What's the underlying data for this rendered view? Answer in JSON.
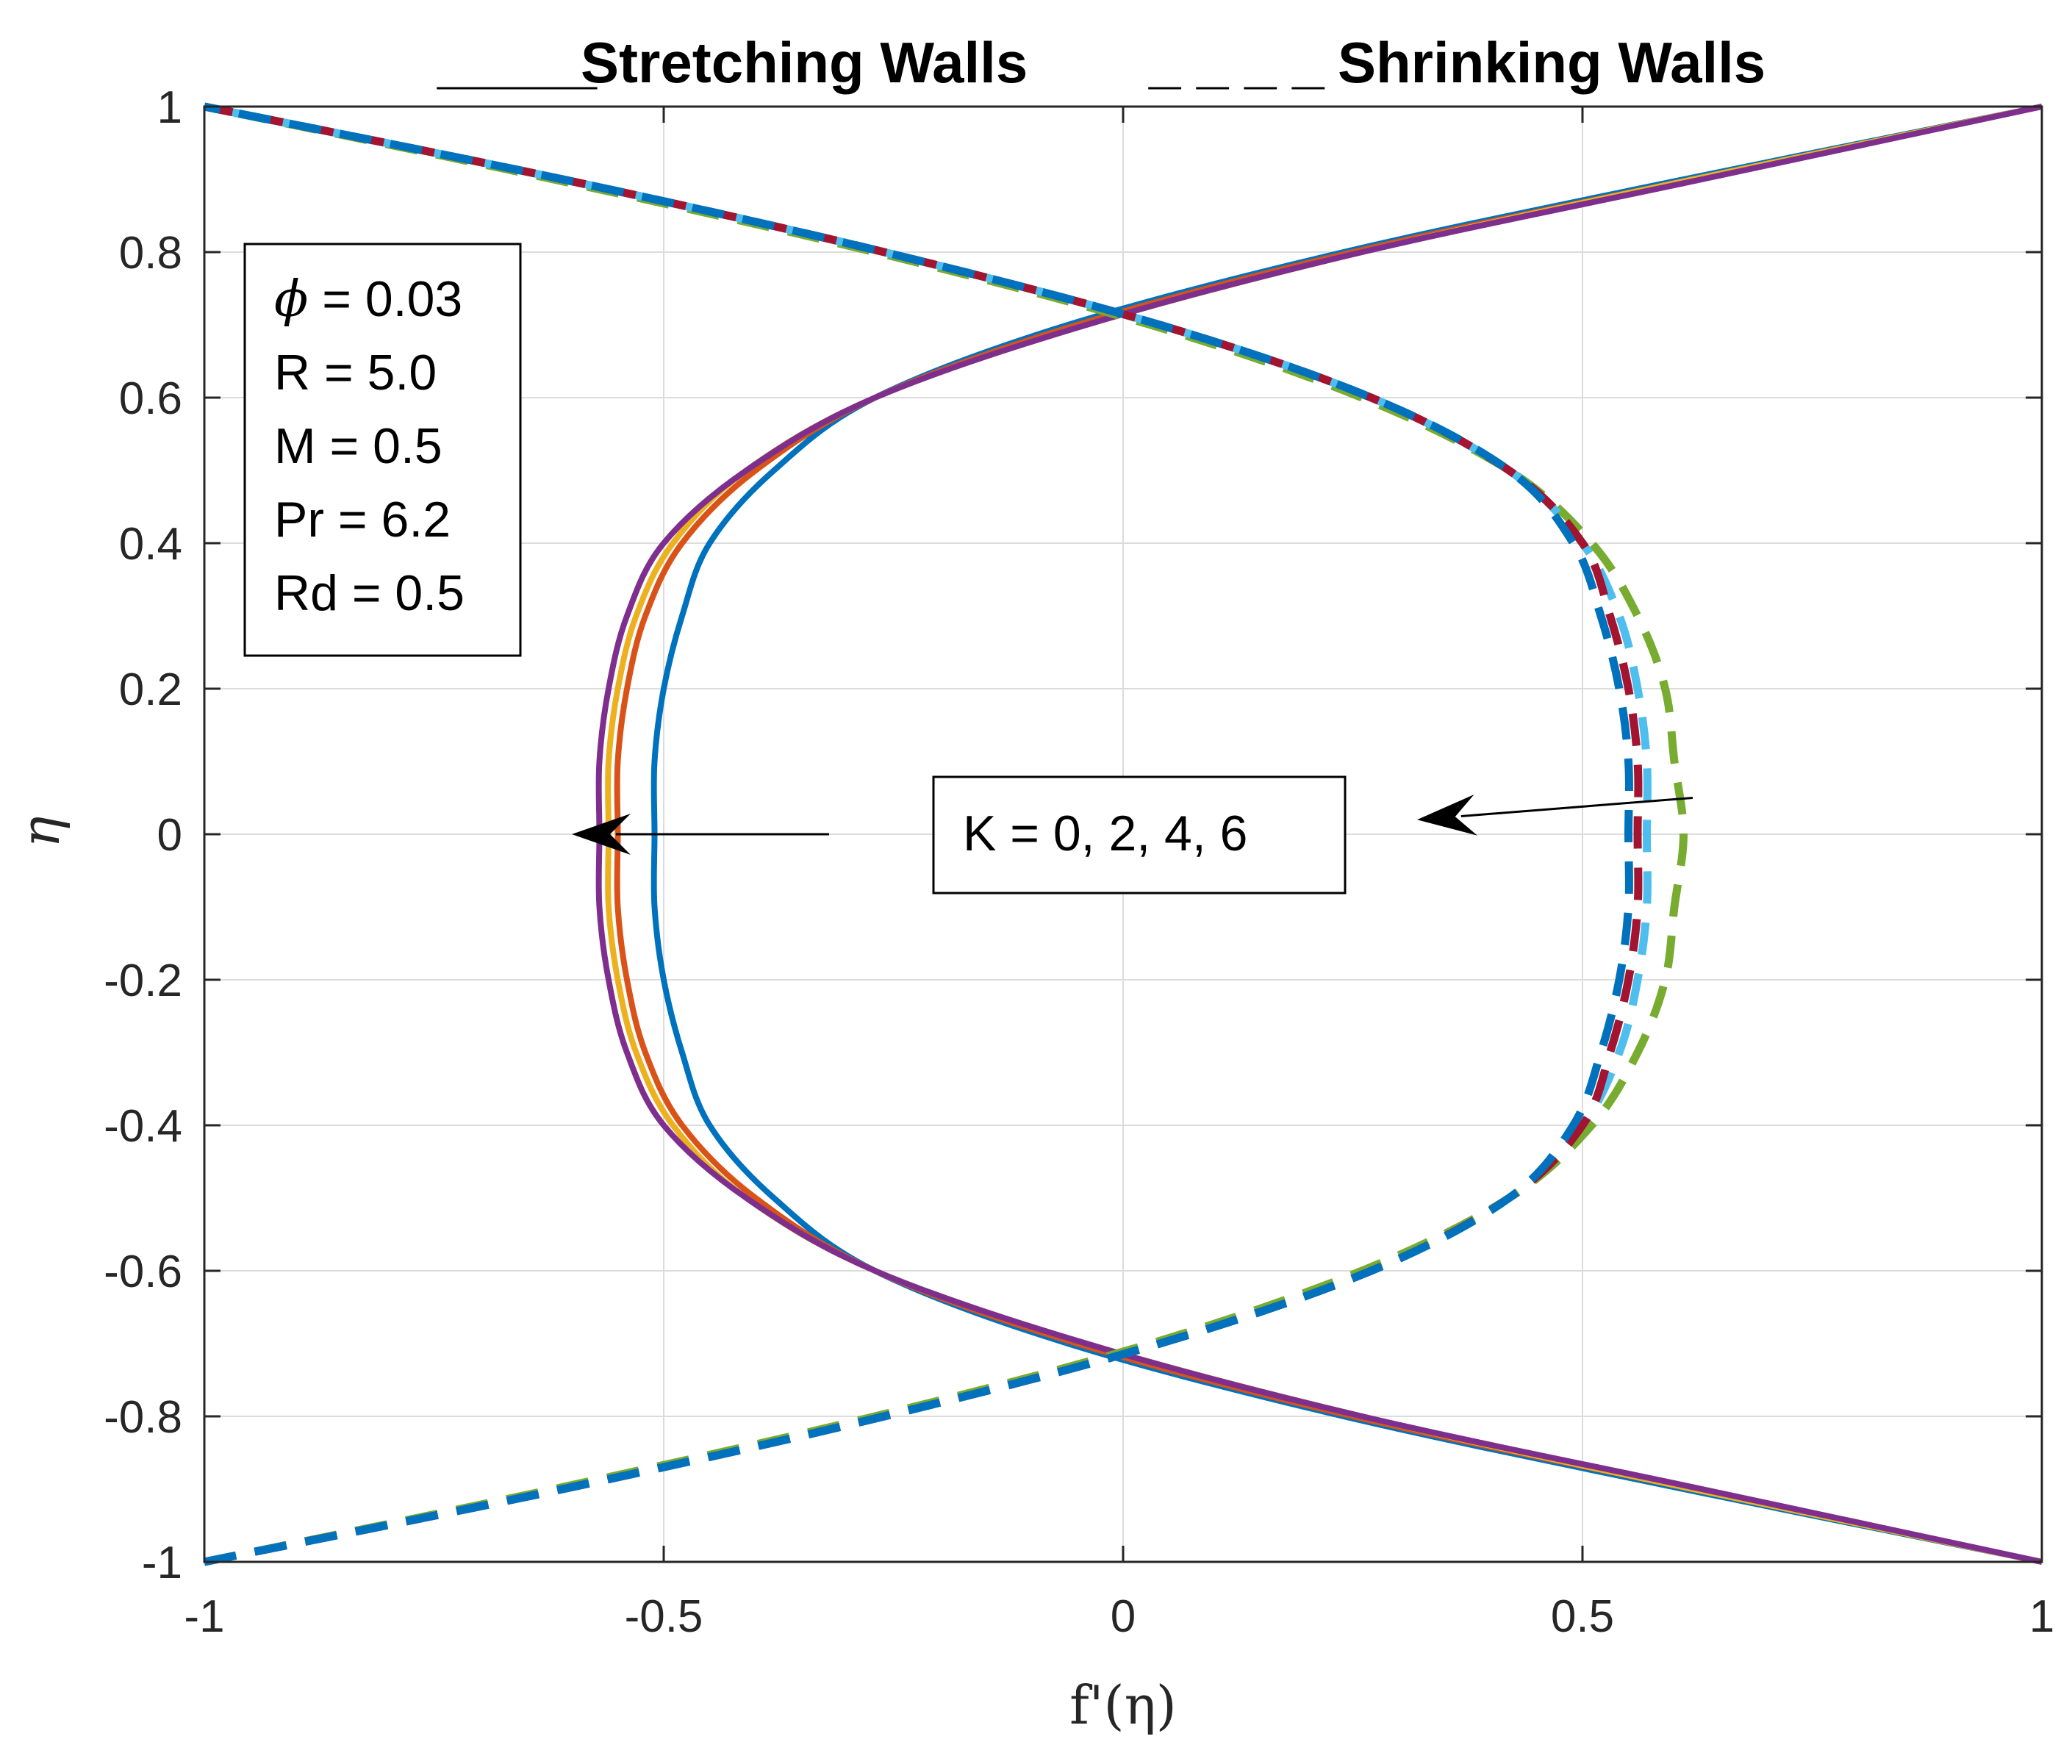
{
  "chart_data": {
    "type": "line",
    "title": "",
    "xlabel": "f'(η)",
    "ylabel": "η",
    "xlim": [
      -1,
      1
    ],
    "ylim": [
      -1,
      1
    ],
    "grid": true,
    "x_ticks": [
      -1,
      -0.5,
      0,
      0.5,
      1
    ],
    "x_tick_labels": [
      "-1",
      "-0.5",
      "0",
      "0.5",
      "1"
    ],
    "y_ticks": [
      -1,
      -0.8,
      -0.6,
      -0.4,
      -0.2,
      0,
      0.2,
      0.4,
      0.6,
      0.8,
      1
    ],
    "y_tick_labels": [
      "-1",
      "-0.8",
      "-0.6",
      "-0.4",
      "-0.2",
      "0",
      "0.2",
      "0.4",
      "0.6",
      "0.8",
      "1"
    ],
    "legend": {
      "stretching_label": "Stretching Walls",
      "shrinking_label": "Shrinking Walls",
      "stretching_marker": "_____",
      "shrinking_marker": "_ _ _ _"
    },
    "parameter_box": {
      "lines": [
        {
          "symbol": "ϕ",
          "text": " = 0.03"
        },
        {
          "symbol": "",
          "text": "R = 5.0"
        },
        {
          "symbol": "",
          "text": "M = 0.5"
        },
        {
          "symbol": "",
          "text": "Pr = 6.2"
        },
        {
          "symbol": "",
          "text": "Rd = 0.5"
        }
      ]
    },
    "annotation": {
      "text": "K = 0, 2, 4, 6",
      "arrows": [
        {
          "name": "stretching-arrow",
          "from": [
            -0.32,
            0.0
          ],
          "to": [
            -0.6,
            0.0
          ]
        },
        {
          "name": "shrinking-arrow",
          "from": [
            0.62,
            0.05
          ],
          "to": [
            0.32,
            0.02
          ]
        }
      ]
    },
    "eta_samples": [
      -1,
      -0.9,
      -0.8,
      -0.7,
      -0.6,
      -0.5,
      -0.4,
      -0.3,
      -0.2,
      -0.1,
      0,
      0.1,
      0.2,
      0.3,
      0.4,
      0.5,
      0.6,
      0.7,
      0.8,
      0.9,
      1
    ],
    "series": [
      {
        "name": "Stretching K = 0",
        "wall": "stretching",
        "K": 0,
        "color": "#0072BD",
        "dash": "solid",
        "f_prime": [
          1,
          0.61,
          0.24,
          -0.06,
          -0.27,
          -0.38,
          -0.45,
          -0.48,
          -0.5,
          -0.51,
          -0.51,
          -0.51,
          -0.5,
          -0.48,
          -0.45,
          -0.38,
          -0.27,
          -0.06,
          0.24,
          0.61,
          1
        ]
      },
      {
        "name": "Stretching K = 2",
        "wall": "stretching",
        "K": 2,
        "color": "#D95319",
        "dash": "solid",
        "f_prime": [
          1,
          0.62,
          0.25,
          -0.05,
          -0.27,
          -0.4,
          -0.48,
          -0.52,
          -0.54,
          -0.55,
          -0.55,
          -0.55,
          -0.54,
          -0.52,
          -0.48,
          -0.4,
          -0.27,
          -0.05,
          0.25,
          0.62,
          1
        ]
      },
      {
        "name": "Stretching K = 4",
        "wall": "stretching",
        "K": 4,
        "color": "#EDB120",
        "dash": "solid",
        "f_prime": [
          1,
          0.62,
          0.26,
          -0.04,
          -0.27,
          -0.41,
          -0.49,
          -0.53,
          -0.55,
          -0.56,
          -0.56,
          -0.56,
          -0.55,
          -0.53,
          -0.49,
          -0.41,
          -0.27,
          -0.04,
          0.26,
          0.62,
          1
        ]
      },
      {
        "name": "Stretching K = 6",
        "wall": "stretching",
        "K": 6,
        "color": "#7E2F8E",
        "dash": "solid",
        "f_prime": [
          1,
          0.63,
          0.26,
          -0.04,
          -0.27,
          -0.41,
          -0.5,
          -0.54,
          -0.56,
          -0.57,
          -0.57,
          -0.57,
          -0.56,
          -0.54,
          -0.5,
          -0.41,
          -0.27,
          -0.04,
          0.26,
          0.63,
          1
        ]
      },
      {
        "name": "Shrinking K = 0",
        "wall": "shrinking",
        "K": 0,
        "color": "#77AC30",
        "dash": "dashed",
        "f_prime": [
          -1,
          -0.62,
          -0.27,
          0.03,
          0.26,
          0.42,
          0.51,
          0.56,
          0.59,
          0.6,
          0.61,
          0.6,
          0.59,
          0.56,
          0.51,
          0.42,
          0.26,
          0.03,
          -0.27,
          -0.62,
          -1
        ]
      },
      {
        "name": "Shrinking K = 2",
        "wall": "shrinking",
        "K": 2,
        "color": "#4DBEEE",
        "dash": "dashed",
        "f_prime": [
          -1,
          -0.61,
          -0.26,
          0.04,
          0.27,
          0.42,
          0.5,
          0.54,
          0.56,
          0.57,
          0.57,
          0.57,
          0.56,
          0.54,
          0.5,
          0.42,
          0.27,
          0.04,
          -0.26,
          -0.61,
          -1
        ]
      },
      {
        "name": "Shrinking K = 4",
        "wall": "shrinking",
        "K": 4,
        "color": "#A2142F",
        "dash": "dashed",
        "f_prime": [
          -1,
          -0.61,
          -0.26,
          0.04,
          0.27,
          0.42,
          0.5,
          0.53,
          0.55,
          0.56,
          0.56,
          0.56,
          0.55,
          0.53,
          0.5,
          0.42,
          0.27,
          0.04,
          -0.26,
          -0.61,
          -1
        ]
      },
      {
        "name": "Shrinking K = 6",
        "wall": "shrinking",
        "K": 6,
        "color": "#0072BD",
        "dash": "dashed",
        "f_prime": [
          -1,
          -0.61,
          -0.26,
          0.04,
          0.27,
          0.42,
          0.49,
          0.52,
          0.54,
          0.55,
          0.55,
          0.55,
          0.54,
          0.52,
          0.49,
          0.42,
          0.27,
          0.04,
          -0.26,
          -0.61,
          -1
        ]
      }
    ]
  }
}
